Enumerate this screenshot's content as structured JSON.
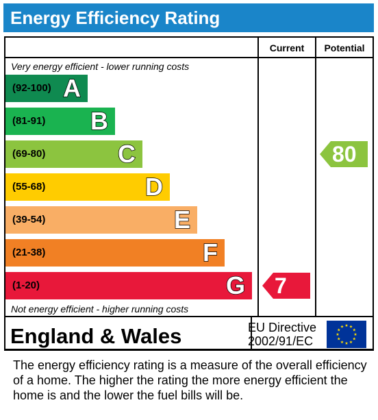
{
  "title": "Energy Efficiency Rating",
  "columns": {
    "current": "Current",
    "potential": "Potential"
  },
  "notes": {
    "top": "Very energy efficient - lower running costs",
    "bottom": "Not energy efficient - higher running costs"
  },
  "chart_data": {
    "type": "bar",
    "title": "Energy Efficiency Rating",
    "categories": [
      "A",
      "B",
      "C",
      "D",
      "E",
      "F",
      "G"
    ],
    "ranges": [
      "(92-100)",
      "(81-91)",
      "(69-80)",
      "(55-68)",
      "(39-54)",
      "(21-38)",
      "(1-20)"
    ],
    "colors": [
      "#0f8a50",
      "#1ab350",
      "#8cc43f",
      "#ffcc00",
      "#f9ae65",
      "#f18024",
      "#e8183a"
    ],
    "current": {
      "value": 7,
      "band": "G",
      "color": "#e8183a"
    },
    "potential": {
      "value": 80,
      "band": "C",
      "color": "#8cc43f"
    }
  },
  "footer": {
    "region": "England & Wales",
    "directive_line1": "EU Directive",
    "directive_line2": "2002/91/EC"
  },
  "description": "The energy efficiency rating is a measure of the overall efficiency of a home.  The higher the rating the more energy efficient the home is and the lower the fuel bills will be."
}
